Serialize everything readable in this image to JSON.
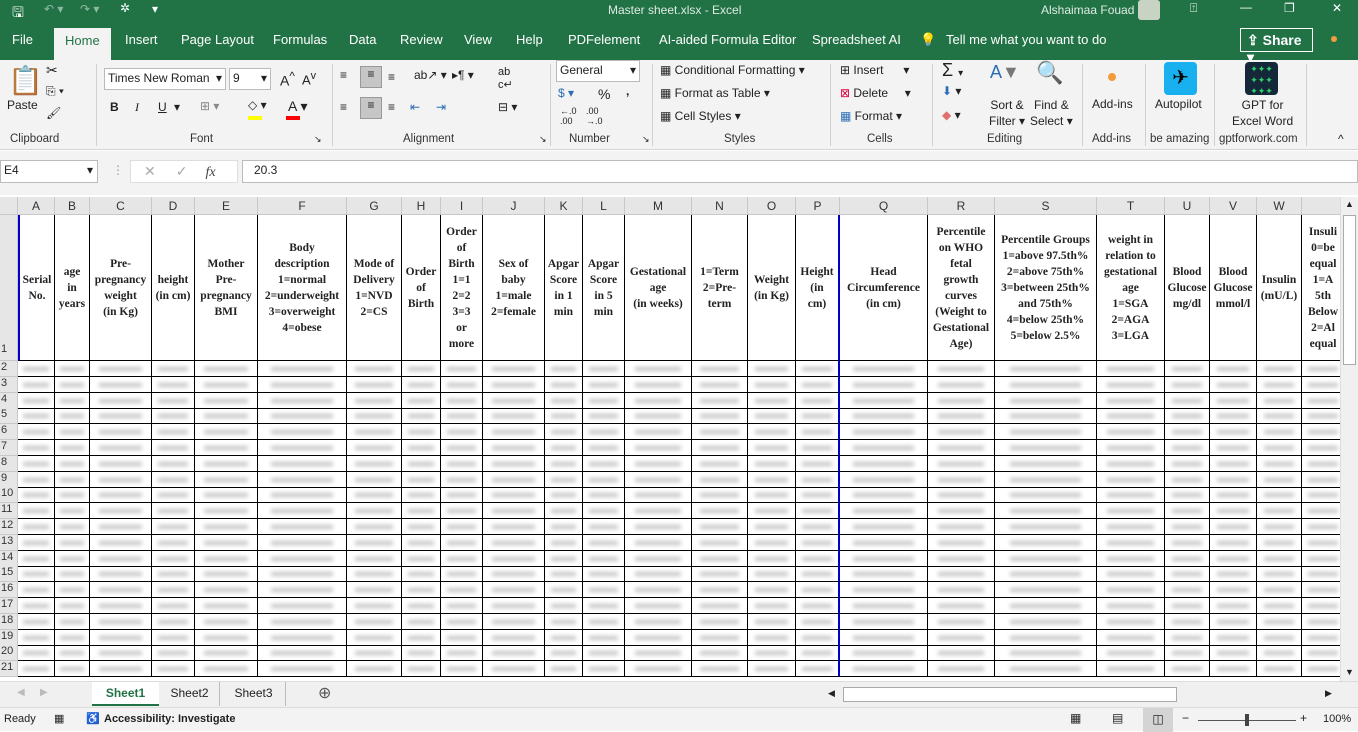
{
  "title_bar": {
    "title": "Master sheet.xlsx  -  Excel",
    "user": "Alshaimaa Fouad"
  },
  "tabs": [
    "File",
    "Home",
    "Insert",
    "Page Layout",
    "Formulas",
    "Data",
    "Review",
    "View",
    "Help",
    "PDFelement",
    "AI-aided Formula Editor",
    "Spreadsheet AI"
  ],
  "active_tab": "Home",
  "tell_me": "Tell me what you want to do",
  "share": "Share",
  "ribbon": {
    "clipboard": {
      "paste": "Paste",
      "label": "Clipboard"
    },
    "font": {
      "name": "Times New Roman",
      "size": "9",
      "bold": "B",
      "italic": "I",
      "underline": "U",
      "label": "Font",
      "fill_color": "#ffff00",
      "font_color": "#ff0000"
    },
    "alignment": {
      "label": "Alignment"
    },
    "number": {
      "format": "General",
      "percent": "%",
      "comma": ",",
      "label": "Number"
    },
    "styles": {
      "conditional": "Conditional Formatting",
      "format_table": "Format as Table",
      "cell_styles": "Cell Styles",
      "label": "Styles"
    },
    "cells": {
      "insert": "Insert",
      "delete": "Delete",
      "format": "Format",
      "label": "Cells"
    },
    "editing": {
      "sort": "Sort &",
      "filter": "Filter",
      "find": "Find &",
      "select": "Select",
      "label": "Editing"
    },
    "addins": {
      "btn": "Add-ins",
      "label": "Add-ins"
    },
    "autopilot": {
      "btn": "Autopilot",
      "label": "be amazing"
    },
    "gpt": {
      "line1": "GPT for",
      "line2": "Excel Word",
      "label": "gptforwork.com"
    }
  },
  "formula_bar": {
    "name_box": "E4",
    "fx": "fx",
    "value": "20.3"
  },
  "columns": [
    "A",
    "B",
    "C",
    "D",
    "E",
    "F",
    "G",
    "H",
    "I",
    "J",
    "K",
    "L",
    "M",
    "N",
    "O",
    "P",
    "Q",
    "R",
    "S",
    "T",
    "U",
    "V",
    "W",
    ""
  ],
  "header_row": [
    "Serial\nNo.",
    "age\nin\nyears",
    "Pre-\npregnancy\nweight\n(in Kg)",
    "height\n(in cm)",
    "Mother\nPre-\npregnancy\nBMI",
    "Body\ndescription\n1=normal\n2=underweight\n3=overweight\n4=obese",
    "Mode of\nDelivery\n1=NVD\n2=CS",
    "Order\nof\nBirth",
    "Order\nof\nBirth\n1=1\n2=2\n3=3\nor\nmore",
    "Sex of\nbaby\n1=male\n2=female",
    "Apgar\nScore\nin 1\nmin",
    "Apgar\nScore\nin 5\nmin",
    "Gestational\nage\n(in weeks)",
    "1=Term\n2=Pre-\nterm",
    "Weight\n(in Kg)",
    "Height\n(in\ncm)",
    "Head\nCircumference\n(in cm)",
    "Percentile\non WHO\nfetal\ngrowth\ncurves\n(Weight to\nGestational\nAge)",
    "Percentile Groups\n1=above 97.5th%\n2=above 75th%\n3=between 25th%\nand 75th%\n4=below 25th%\n5=below 2.5%",
    "weight in\nrelation to\ngestational\nage\n1=SGA\n2=AGA\n3=LGA",
    "Blood\nGlucose\nmg/dl",
    "Blood\nGlucose\nmmol/l",
    "Insulin\n(mU/L)",
    "Insuli\n0=be\nequal\n1=A\n5th\nBelow\n2=Al\nequal"
  ],
  "rows": [
    "1",
    "2",
    "3",
    "4",
    "5",
    "6",
    "7",
    "8",
    "9",
    "10",
    "11",
    "12",
    "13",
    "14",
    "15",
    "16",
    "17",
    "18",
    "19",
    "20",
    "21"
  ],
  "sheets": [
    "Sheet1",
    "Sheet2",
    "Sheet3"
  ],
  "active_sheet": "Sheet1",
  "status": {
    "ready": "Ready",
    "accessibility": "Accessibility: Investigate",
    "zoom": "100%",
    "zoom_level": 100
  }
}
